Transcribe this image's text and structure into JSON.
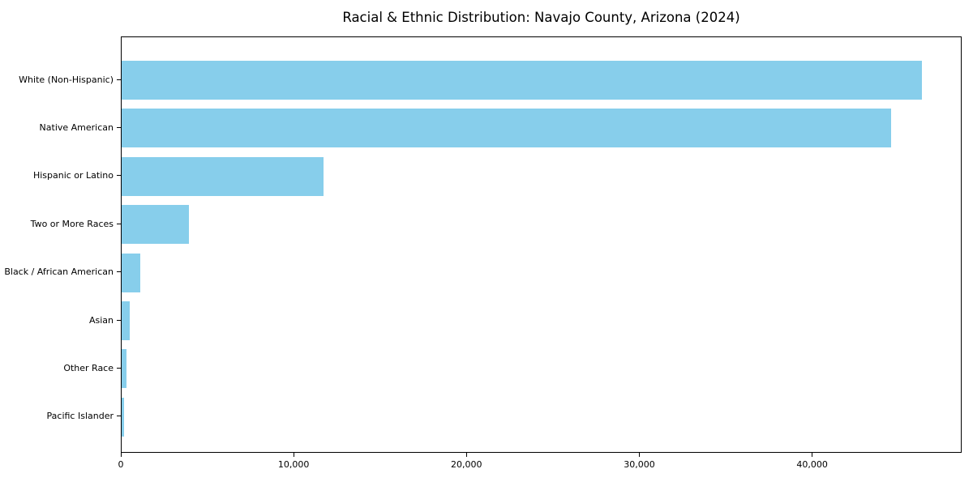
{
  "chart_data": {
    "type": "bar",
    "orientation": "horizontal",
    "title": "Racial & Ethnic Distribution: Navajo County, Arizona (2024)",
    "categories": [
      "White (Non-Hispanic)",
      "Native American",
      "Hispanic or Latino",
      "Two or More Races",
      "Black / African American",
      "Asian",
      "Other Race",
      "Pacific Islander"
    ],
    "values": [
      46300,
      44500,
      11700,
      3900,
      1100,
      460,
      280,
      130
    ],
    "xlabel": "",
    "ylabel": "",
    "xlim": [
      0,
      48650
    ],
    "xticks": [
      0,
      10000,
      20000,
      30000,
      40000
    ],
    "xtick_labels": [
      "0",
      "10,000",
      "20,000",
      "30,000",
      "40,000"
    ],
    "bar_color": "#87CEEB",
    "grid": false,
    "legend": false,
    "sort_order": "descending"
  },
  "colors": {
    "bar": "#87CEEB",
    "axis": "#000000",
    "text": "#000000",
    "background": "#FFFFFF"
  }
}
